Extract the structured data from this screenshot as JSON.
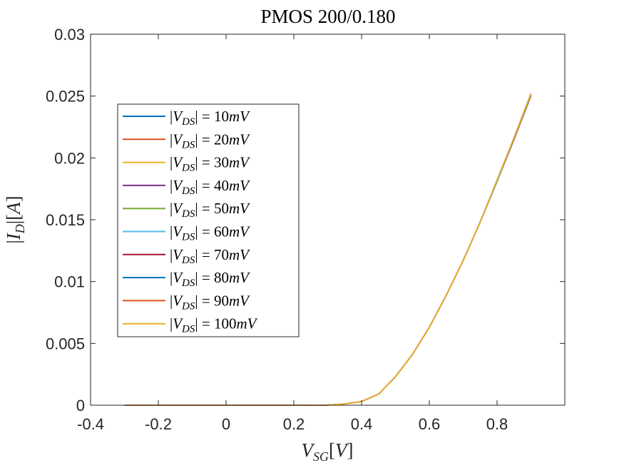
{
  "chart_data": {
    "type": "line",
    "title": "PMOS 200/0.180",
    "xlabel": "V_SG[V]",
    "ylabel": "|I_D|[A]",
    "xlim": [
      -0.4,
      1.0
    ],
    "ylim": [
      0,
      0.03
    ],
    "xticks": [
      -0.4,
      -0.2,
      0,
      0.2,
      0.4,
      0.6,
      0.8
    ],
    "xtick_labels": [
      "-0.4",
      "-0.2",
      "0",
      "0.2",
      "0.4",
      "0.6",
      "0.8"
    ],
    "yticks": [
      0,
      0.005,
      0.01,
      0.015,
      0.02,
      0.025,
      0.03
    ],
    "ytick_labels": [
      "0",
      "0.005",
      "0.01",
      "0.015",
      "0.02",
      "0.025",
      "0.03"
    ],
    "grid": false,
    "legend_position": "left",
    "x": [
      -0.3,
      -0.2,
      -0.1,
      0.0,
      0.1,
      0.2,
      0.3,
      0.35,
      0.4,
      0.45,
      0.5,
      0.55,
      0.6,
      0.65,
      0.7,
      0.75,
      0.8,
      0.85,
      0.9
    ],
    "series": [
      {
        "name": "|V_DS| = 10mV",
        "color": "#0072BD",
        "values": [
          0,
          0,
          0,
          0,
          0,
          0,
          1e-05,
          0.0001,
          0.0003,
          0.0009,
          0.0023,
          0.0041,
          0.0063,
          0.0089,
          0.0117,
          0.0148,
          0.0181,
          0.0215,
          0.025
        ]
      },
      {
        "name": "|V_DS| = 20mV",
        "color": "#D95319",
        "values": [
          0,
          0,
          0,
          0,
          0,
          0,
          1e-05,
          0.0001,
          0.0003,
          0.0009,
          0.0023,
          0.0041,
          0.0063,
          0.0089,
          0.0117,
          0.0148,
          0.0181,
          0.0215,
          0.025
        ]
      },
      {
        "name": "|V_DS| = 30mV",
        "color": "#EDB120",
        "values": [
          0,
          0,
          0,
          0,
          0,
          0,
          1e-05,
          0.0001,
          0.0003,
          0.0009,
          0.0023,
          0.0041,
          0.0063,
          0.0089,
          0.0117,
          0.0148,
          0.0181,
          0.0215,
          0.0251
        ]
      },
      {
        "name": "|V_DS| = 40mV",
        "color": "#7E2F8E",
        "values": [
          0,
          0,
          0,
          0,
          0,
          0,
          1e-05,
          0.0001,
          0.0003,
          0.0009,
          0.0023,
          0.0041,
          0.0063,
          0.0089,
          0.0117,
          0.0148,
          0.0181,
          0.0215,
          0.0251
        ]
      },
      {
        "name": "|V_DS| = 50mV",
        "color": "#77AC30",
        "values": [
          0,
          0,
          0,
          0,
          0,
          0,
          1e-05,
          0.0001,
          0.0003,
          0.0009,
          0.0023,
          0.0041,
          0.0063,
          0.0089,
          0.0117,
          0.0148,
          0.0181,
          0.0216,
          0.0251
        ]
      },
      {
        "name": "|V_DS| = 60mV",
        "color": "#4DBEEE",
        "values": [
          0,
          0,
          0,
          0,
          0,
          0,
          1e-05,
          0.0001,
          0.0003,
          0.0009,
          0.0023,
          0.0041,
          0.0063,
          0.0089,
          0.0117,
          0.0148,
          0.0181,
          0.0216,
          0.0251
        ]
      },
      {
        "name": "|V_DS| = 70mV",
        "color": "#A2142F",
        "values": [
          0,
          0,
          0,
          0,
          0,
          0,
          1e-05,
          0.0001,
          0.0003,
          0.0009,
          0.0023,
          0.0041,
          0.0063,
          0.0089,
          0.0117,
          0.0148,
          0.0182,
          0.0216,
          0.0252
        ]
      },
      {
        "name": "|V_DS| = 80mV",
        "color": "#0072BD",
        "values": [
          0,
          0,
          0,
          0,
          0,
          0,
          1e-05,
          0.0001,
          0.0003,
          0.0009,
          0.0023,
          0.0041,
          0.0063,
          0.0089,
          0.0117,
          0.0148,
          0.0182,
          0.0216,
          0.0252
        ]
      },
      {
        "name": "|V_DS| = 90mV",
        "color": "#D95319",
        "values": [
          0,
          0,
          0,
          0,
          0,
          0,
          1e-05,
          0.0001,
          0.0003,
          0.0009,
          0.0023,
          0.0041,
          0.0063,
          0.0089,
          0.0117,
          0.0148,
          0.0182,
          0.0216,
          0.0252
        ]
      },
      {
        "name": "|V_DS| = 100mV",
        "color": "#EDB120",
        "values": [
          0,
          0,
          0,
          0,
          0,
          0,
          1e-05,
          0.0001,
          0.0003,
          0.0009,
          0.0023,
          0.0041,
          0.0063,
          0.0089,
          0.0117,
          0.0148,
          0.0182,
          0.0216,
          0.0252
        ]
      }
    ]
  }
}
